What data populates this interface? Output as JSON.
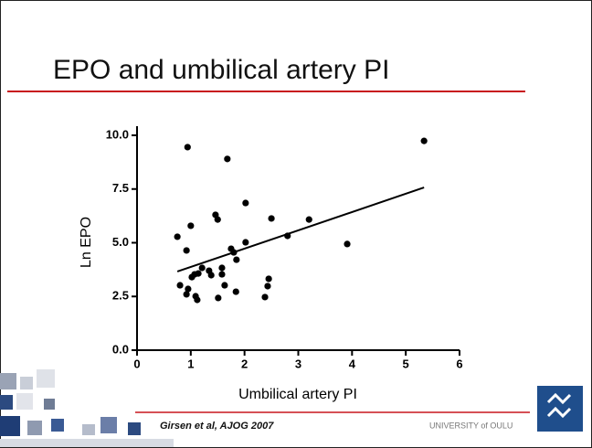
{
  "slide": {
    "title": "EPO and umbilical artery PI",
    "citation": "Girsen et al, AJOG 2007",
    "institution": "UNIVERSITY of OULU"
  },
  "chart_data": {
    "type": "scatter",
    "x_label": "Umbilical artery PI",
    "y_label": "Ln EPO",
    "color": "#000000",
    "x": [
      0.94,
      1.68,
      5.34,
      2.02,
      1.46,
      1.5,
      2.5,
      3.2,
      1.0,
      0.75,
      2.8,
      2.02,
      3.91,
      0.92,
      1.75,
      1.8,
      1.85,
      1.21,
      1.34,
      1.14,
      1.07,
      1.58,
      1.58,
      1.02,
      1.38,
      2.45,
      0.8,
      1.63,
      2.43,
      0.95,
      0.92,
      1.84,
      1.09,
      1.12,
      1.51,
      2.38
    ],
    "values": [
      9.45,
      8.9,
      9.74,
      6.85,
      6.3,
      6.08,
      6.13,
      6.08,
      5.79,
      5.28,
      5.32,
      5.02,
      4.94,
      4.64,
      4.72,
      4.55,
      4.21,
      3.83,
      3.7,
      3.57,
      3.53,
      3.83,
      3.53,
      3.4,
      3.49,
      3.32,
      3.02,
      3.02,
      2.98,
      2.85,
      2.6,
      2.72,
      2.51,
      2.34,
      2.43,
      2.47
    ],
    "trendline": {
      "x": [
        0.75,
        5.34
      ],
      "y": [
        3.66,
        7.57
      ]
    },
    "xlim": [
      0,
      6
    ],
    "xticks": [
      0,
      1,
      2,
      3,
      4,
      5,
      6
    ],
    "ylim": [
      0,
      10
    ],
    "yticks": [
      {
        "value": 0,
        "label": "0.0"
      },
      2.5,
      {
        "value": 5,
        "label": "5.0"
      },
      7.5,
      {
        "value": 10,
        "label": "10.0"
      }
    ]
  }
}
